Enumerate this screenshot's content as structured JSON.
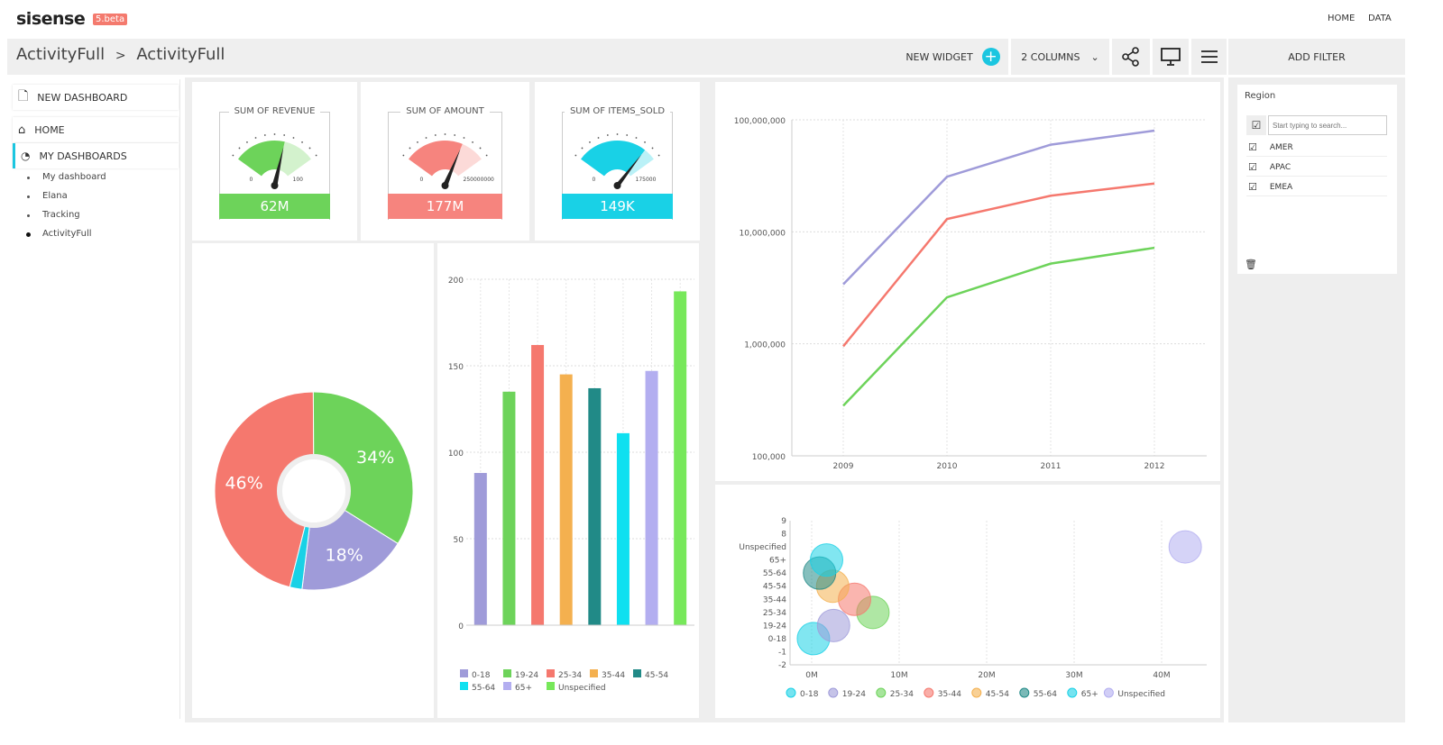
{
  "header": {
    "logo": "sisense",
    "version": "5.beta",
    "links": [
      "HOME",
      "DATA"
    ]
  },
  "toolbar": {
    "breadcrumb": [
      "ActivityFull",
      "ActivityFull"
    ],
    "breadcrumb_sep": ">",
    "new_widget": "NEW WIDGET",
    "columns": "2 COLUMNS",
    "add_filter": "ADD FILTER"
  },
  "sidebar": {
    "new_dashboard": "NEW DASHBOARD",
    "home": "HOME",
    "my_dashboards": "MY DASHBOARDS",
    "dashboards": [
      "My dashboard",
      "Elana",
      "Tracking",
      "ActivityFull"
    ],
    "active": "ActivityFull"
  },
  "gauges": [
    {
      "title": "SUM OF REVENUE",
      "min": "0",
      "max": "100",
      "value": "62M",
      "fill": 0.62,
      "color": "#6dd35a"
    },
    {
      "title": "SUM OF AMOUNT",
      "min": "0",
      "max": "250000000",
      "value": "177M",
      "fill": 0.71,
      "color": "#f6847e"
    },
    {
      "title": "SUM OF ITEMS_SOLD",
      "min": "0",
      "max": "175000",
      "value": "149K",
      "fill": 0.85,
      "color": "#19d1e6"
    }
  ],
  "filter": {
    "title": "Region",
    "search_placeholder": "Start typing to search...",
    "items": [
      "AMER",
      "APAC",
      "EMEA"
    ]
  },
  "chart_data": [
    {
      "type": "pie",
      "donut": true,
      "slices": [
        {
          "label": "46%",
          "value": 46,
          "color": "#f5786e"
        },
        {
          "label": "34%",
          "value": 34,
          "color": "#6dd35a"
        },
        {
          "label": "18%",
          "value": 18,
          "color": "#9f9bd9"
        },
        {
          "label": "",
          "value": 2,
          "color": "#19d1e6"
        }
      ]
    },
    {
      "type": "bar",
      "categories": [
        "0-18",
        "19-24",
        "25-34",
        "35-44",
        "45-54",
        "55-64",
        "65+",
        "Unspecified"
      ],
      "values": [
        88,
        135,
        162,
        145,
        137,
        111,
        147,
        193
      ],
      "colors": [
        "#9f9bd9",
        "#6dd35a",
        "#f5786e",
        "#f4b04f",
        "#218a87",
        "#0fe0f0",
        "#b3aef0",
        "#77e85a"
      ],
      "ylim": [
        0,
        200
      ],
      "yticks": [
        "0",
        "50",
        "100",
        "150",
        "200"
      ],
      "legend": "bottom",
      "grid": true
    },
    {
      "type": "line",
      "yscale": "log",
      "x": [
        "2009",
        "2010",
        "2011",
        "2012"
      ],
      "series": [
        {
          "values": [
            3400000,
            31000000,
            60000000,
            80000000
          ],
          "color": "#9f9bd9"
        },
        {
          "values": [
            950000,
            13000000,
            21000000,
            27000000
          ],
          "color": "#f5786e"
        },
        {
          "values": [
            280000,
            2600000,
            5200000,
            7200000
          ],
          "color": "#6dd35a"
        }
      ],
      "ylim": [
        100000,
        100000000
      ],
      "yticks": [
        "100,000",
        "1,000,000",
        "10,000,000",
        "100,000,000"
      ],
      "grid": true
    },
    {
      "type": "scatter",
      "bubble": true,
      "xlim": [
        -2000000,
        45000000
      ],
      "xticks": [
        "0M",
        "10M",
        "20M",
        "30M",
        "40M"
      ],
      "yticks": [
        "-2",
        "-1",
        "0-18",
        "19-24",
        "25-34",
        "35-44",
        "45-54",
        "55-64",
        "65+",
        "Unspecified",
        "8",
        "9"
      ],
      "points": [
        {
          "name": "0-18",
          "x": 200000,
          "y": 0,
          "color": "#19d1e6"
        },
        {
          "name": "19-24",
          "x": 2500000,
          "y": 1,
          "color": "#9f9bd9"
        },
        {
          "name": "25-34",
          "x": 7000000,
          "y": 2,
          "color": "#6dd35a"
        },
        {
          "name": "35-44",
          "x": 4900000,
          "y": 3,
          "color": "#f5786e"
        },
        {
          "name": "45-54",
          "x": 2400000,
          "y": 4,
          "color": "#f4b04f"
        },
        {
          "name": "55-64",
          "x": 900000,
          "y": 5,
          "color": "#218a87"
        },
        {
          "name": "65+",
          "x": 1700000,
          "y": 6,
          "color": "#19d1e6"
        },
        {
          "name": "Unspecified",
          "x": 42700000,
          "y": 7,
          "color": "#b3aef0"
        }
      ],
      "legend": "bottom"
    }
  ]
}
